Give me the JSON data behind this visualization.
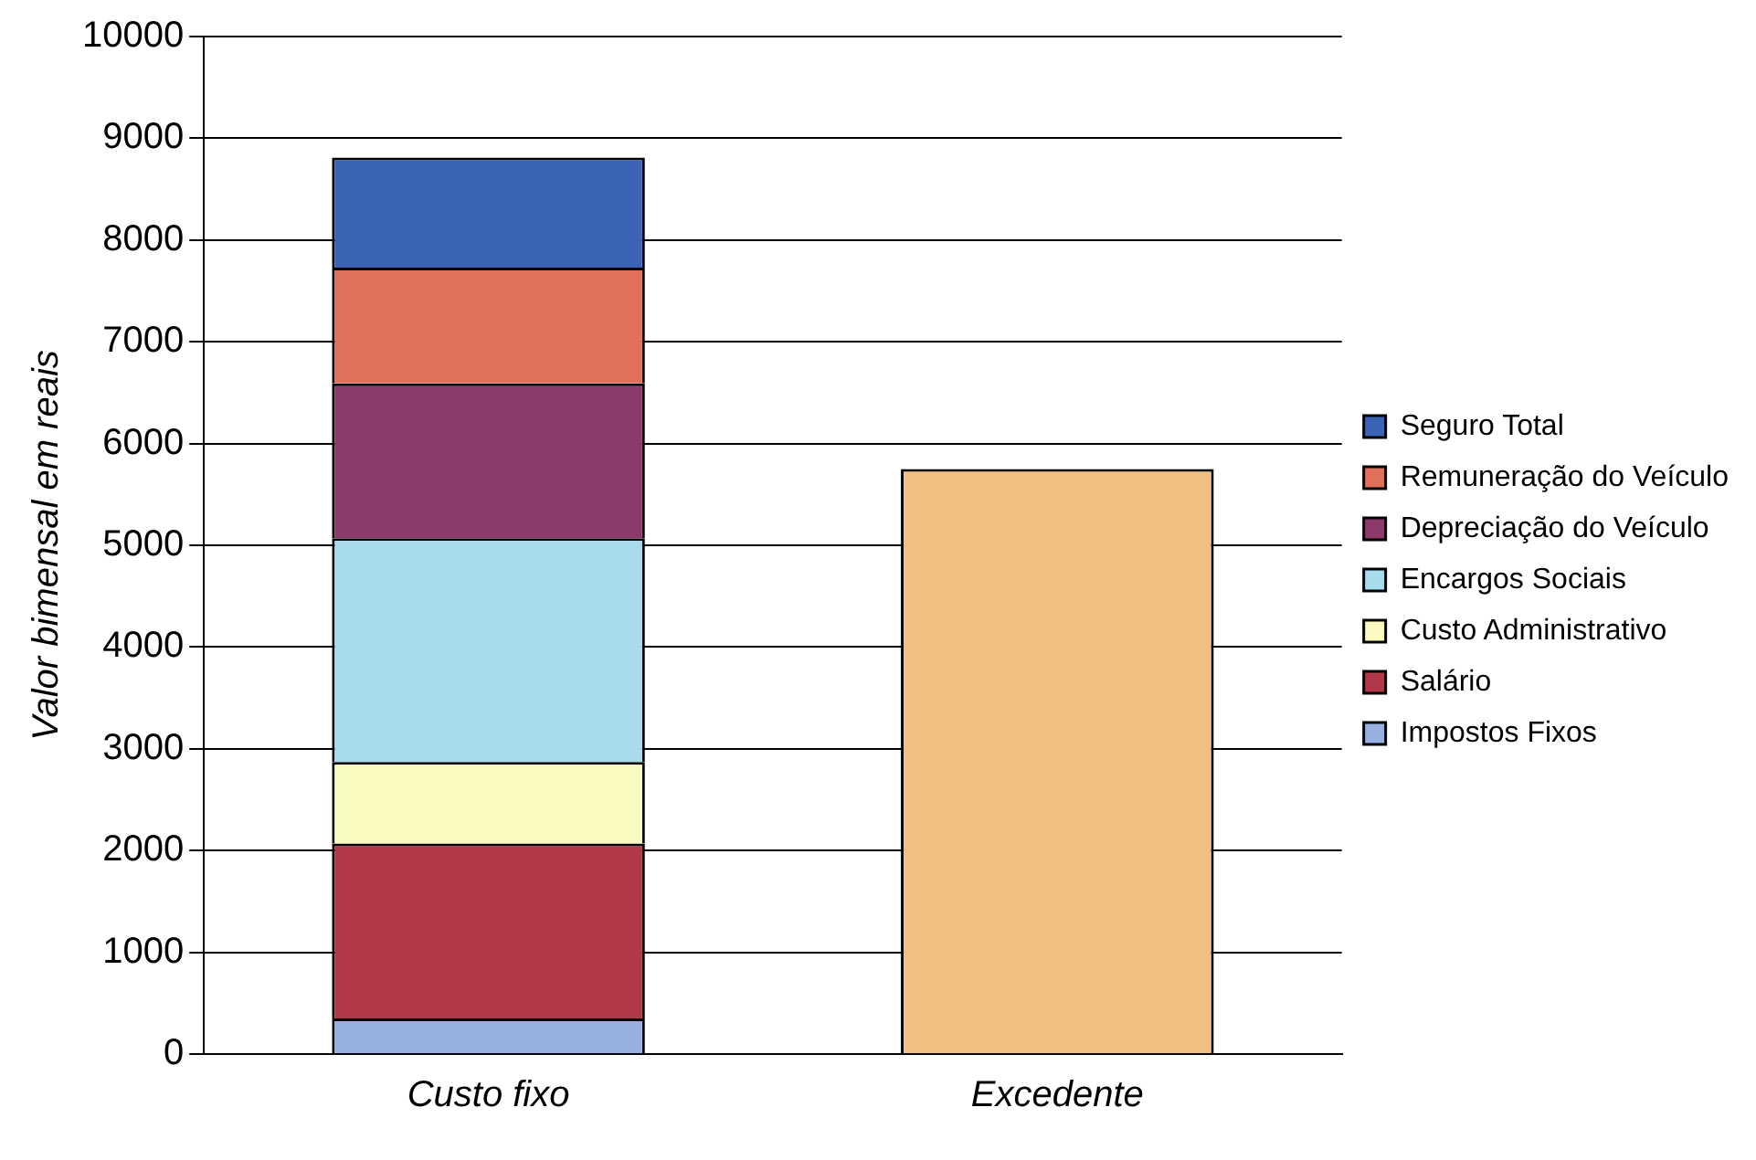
{
  "chart_data": {
    "type": "bar",
    "stacked": true,
    "ylabel": "Valor bimensal em reais",
    "categories": [
      "Custo fixo",
      "Excedente"
    ],
    "series": [
      {
        "name": "Impostos Fixos",
        "color": "#98b0e0",
        "values": [
          350,
          null
        ]
      },
      {
        "name": "Salário",
        "color": "#b03848",
        "values": [
          1720,
          null
        ]
      },
      {
        "name": "Custo Administrativo",
        "color": "#fafac0",
        "values": [
          800,
          null
        ]
      },
      {
        "name": "Encargos Sociais",
        "color": "#a8dcec",
        "values": [
          2200,
          null
        ]
      },
      {
        "name": "Depreciação do Veículo",
        "color": "#8c3a6a",
        "values": [
          1520,
          null
        ]
      },
      {
        "name": "Remuneração do Veículo",
        "color": "#e0705a",
        "values": [
          1140,
          null
        ]
      },
      {
        "name": "Seguro Total",
        "color": "#3c64b4",
        "values": [
          1080,
          null
        ]
      },
      {
        "color": "#f0c080",
        "values": [
          null,
          5750
        ]
      }
    ],
    "ylim": [
      0,
      10000
    ],
    "yticks": [
      0,
      1000,
      2000,
      3000,
      4000,
      5000,
      6000,
      7000,
      8000,
      9000,
      10000
    ],
    "grid": "y",
    "legend": "right"
  }
}
